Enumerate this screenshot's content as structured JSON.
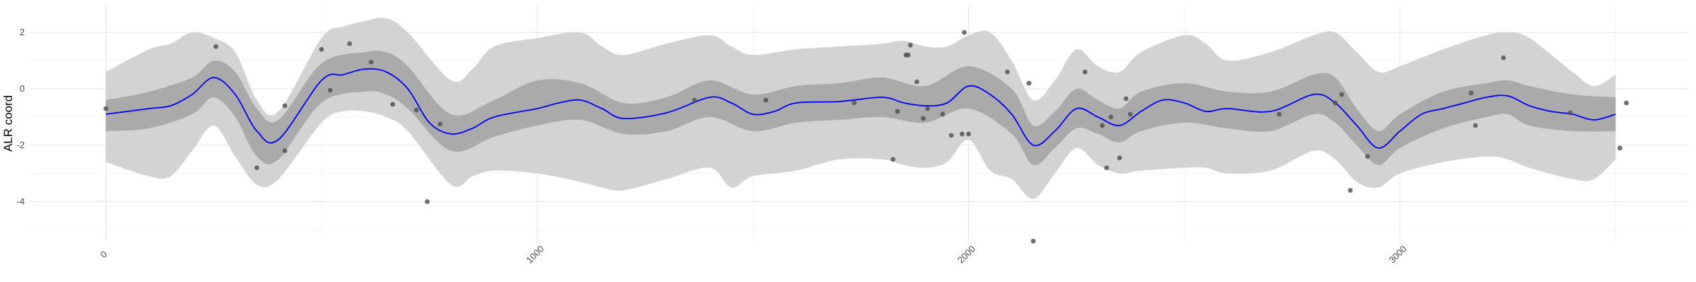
{
  "chart_data": {
    "type": "line",
    "title": "",
    "xlabel": "",
    "ylabel": "ALR coord",
    "xlim": [
      -175,
      3670
    ],
    "ylim": [
      -5.4,
      2.95
    ],
    "x_ticks": [
      0,
      1000,
      2000,
      3000
    ],
    "y_ticks": [
      2,
      0,
      -2,
      -4
    ],
    "grid": true,
    "legend": "none",
    "colors": {
      "mean_line": "#0000ff",
      "inner_band": "#aaaaaa",
      "outer_band": "#d3d3d3",
      "points": "#555555",
      "grid_major": "#e8e8e8",
      "grid_minor": "#f3f3f3"
    },
    "mean_curve": {
      "x": [
        0,
        100,
        150,
        200,
        250,
        300,
        350,
        400,
        500,
        550,
        600,
        650,
        700,
        750,
        800,
        850,
        900,
        1000,
        1050,
        1100,
        1150,
        1200,
        1300,
        1400,
        1450,
        1500,
        1550,
        1600,
        1700,
        1800,
        1850,
        1900,
        1950,
        2000,
        2050,
        2100,
        2150,
        2200,
        2250,
        2300,
        2350,
        2400,
        2450,
        2500,
        2550,
        2600,
        2700,
        2800,
        2850,
        2900,
        2950,
        3000,
        3050,
        3100,
        3150,
        3200,
        3250,
        3300,
        3350,
        3400,
        3450,
        3500
      ],
      "y": [
        -0.9,
        -0.7,
        -0.6,
        -0.2,
        0.4,
        -0.2,
        -1.5,
        -1.8,
        0.3,
        0.5,
        0.7,
        0.6,
        0.0,
        -1.2,
        -1.6,
        -1.4,
        -1.0,
        -0.7,
        -0.5,
        -0.4,
        -0.7,
        -1.05,
        -0.85,
        -0.3,
        -0.5,
        -0.9,
        -0.8,
        -0.5,
        -0.45,
        -0.3,
        -0.5,
        -0.6,
        -0.5,
        0.1,
        -0.2,
        -0.9,
        -2.0,
        -1.5,
        -0.7,
        -1.0,
        -1.3,
        -0.8,
        -0.4,
        -0.5,
        -0.8,
        -0.7,
        -0.8,
        -0.2,
        -0.5,
        -1.3,
        -2.1,
        -1.5,
        -0.9,
        -0.7,
        -0.5,
        -0.3,
        -0.25,
        -0.6,
        -0.8,
        -0.9,
        -1.1,
        -0.9
      ]
    },
    "inner_band": {
      "x": [
        0,
        100,
        200,
        250,
        300,
        350,
        400,
        500,
        600,
        650,
        700,
        800,
        900,
        1000,
        1100,
        1200,
        1300,
        1400,
        1500,
        1600,
        1700,
        1800,
        1900,
        2000,
        2100,
        2150,
        2200,
        2250,
        2300,
        2350,
        2400,
        2500,
        2600,
        2700,
        2800,
        2850,
        2900,
        2950,
        3000,
        3100,
        3200,
        3250,
        3300,
        3400,
        3500
      ],
      "lower": [
        -1.5,
        -1.4,
        -0.9,
        -0.3,
        -1.0,
        -2.4,
        -2.5,
        -0.5,
        -0.1,
        -0.2,
        -0.7,
        -2.2,
        -1.7,
        -1.3,
        -1.1,
        -1.6,
        -1.5,
        -1.0,
        -1.5,
        -1.2,
        -1.1,
        -1.0,
        -1.2,
        -0.7,
        -1.6,
        -2.7,
        -2.1,
        -1.4,
        -1.6,
        -1.9,
        -1.5,
        -1.2,
        -1.4,
        -1.5,
        -0.9,
        -1.2,
        -2.0,
        -2.7,
        -2.1,
        -1.4,
        -1.0,
        -0.9,
        -1.3,
        -1.5,
        -1.5
      ],
      "upper": [
        -0.4,
        -0.1,
        0.4,
        1.0,
        0.6,
        -0.7,
        -1.1,
        0.9,
        1.3,
        1.3,
        0.8,
        -0.9,
        -0.4,
        0.3,
        0.2,
        -0.5,
        -0.3,
        0.3,
        -0.2,
        0.1,
        0.2,
        0.4,
        0.1,
        0.8,
        0.0,
        -1.3,
        -0.8,
        0.0,
        -0.4,
        -0.7,
        -0.1,
        0.2,
        -0.1,
        -0.1,
        0.5,
        0.4,
        -0.7,
        -1.5,
        -0.9,
        -0.1,
        0.2,
        0.3,
        0.1,
        -0.2,
        -0.3
      ]
    },
    "outer_band": {
      "x": [
        0,
        100,
        150,
        200,
        250,
        300,
        350,
        400,
        500,
        550,
        600,
        650,
        700,
        800,
        850,
        900,
        1000,
        1100,
        1150,
        1200,
        1300,
        1400,
        1450,
        1500,
        1600,
        1700,
        1800,
        1850,
        1900,
        1950,
        2000,
        2050,
        2100,
        2150,
        2200,
        2250,
        2300,
        2350,
        2400,
        2500,
        2550,
        2600,
        2700,
        2800,
        2850,
        2900,
        2950,
        3000,
        3100,
        3200,
        3250,
        3300,
        3400,
        3450,
        3500
      ],
      "lower": [
        -2.6,
        -3.1,
        -3.1,
        -2.2,
        -1.3,
        -2.4,
        -3.4,
        -3.2,
        -1.2,
        -0.8,
        -0.8,
        -1.0,
        -1.5,
        -3.4,
        -3.1,
        -2.9,
        -3.0,
        -3.3,
        -3.5,
        -3.6,
        -3.2,
        -2.8,
        -3.5,
        -3.1,
        -2.9,
        -2.5,
        -2.5,
        -2.7,
        -2.8,
        -2.6,
        -1.8,
        -2.9,
        -3.2,
        -3.9,
        -3.0,
        -2.1,
        -2.7,
        -3.0,
        -2.9,
        -2.8,
        -2.8,
        -3.0,
        -2.9,
        -2.2,
        -2.5,
        -3.3,
        -3.5,
        -3.0,
        -2.6,
        -2.4,
        -2.5,
        -2.8,
        -3.2,
        -3.2,
        -2.5
      ],
      "upper": [
        0.6,
        1.4,
        1.6,
        2.0,
        1.8,
        1.3,
        -0.4,
        -0.8,
        1.8,
        2.2,
        2.4,
        2.5,
        2.0,
        0.3,
        0.7,
        1.5,
        1.8,
        2.0,
        1.5,
        1.2,
        1.6,
        1.9,
        1.5,
        1.2,
        1.4,
        1.5,
        1.6,
        1.7,
        1.5,
        1.5,
        1.9,
        2.0,
        1.0,
        -0.4,
        0.3,
        1.4,
        0.8,
        0.6,
        1.3,
        1.9,
        1.6,
        1.0,
        1.3,
        1.9,
        2.0,
        1.3,
        0.6,
        0.8,
        1.4,
        1.9,
        2.0,
        1.8,
        0.6,
        0.1,
        0.5
      ]
    },
    "points": {
      "x": [
        0,
        255,
        350,
        415,
        415,
        500,
        520,
        565,
        615,
        665,
        720,
        745,
        775,
        1365,
        1530,
        1735,
        1825,
        1835,
        1855,
        1860,
        1865,
        1880,
        1895,
        1905,
        1940,
        1960,
        1985,
        1990,
        2000,
        2090,
        2140,
        2150,
        2270,
        2310,
        2320,
        2330,
        2350,
        2365,
        2375,
        2720,
        2850,
        2865,
        2885,
        2925,
        3165,
        3175,
        3240,
        3395,
        3510,
        3525
      ],
      "y": [
        -0.7,
        1.5,
        -2.8,
        -0.6,
        -2.2,
        1.4,
        -0.05,
        1.6,
        0.95,
        -0.55,
        -0.75,
        -4.0,
        -1.25,
        -0.4,
        -0.4,
        -0.5,
        -2.5,
        -0.8,
        1.2,
        1.2,
        1.55,
        0.25,
        -1.05,
        -0.7,
        -0.9,
        -1.65,
        -1.6,
        2.0,
        -1.6,
        0.6,
        0.2,
        -5.4,
        0.6,
        -1.3,
        -2.8,
        -1.0,
        -2.45,
        -0.35,
        -0.9,
        -0.9,
        -0.5,
        -0.2,
        -3.6,
        -2.4,
        -0.15,
        -1.3,
        1.1,
        -0.85,
        -2.1,
        -0.5
      ]
    }
  }
}
